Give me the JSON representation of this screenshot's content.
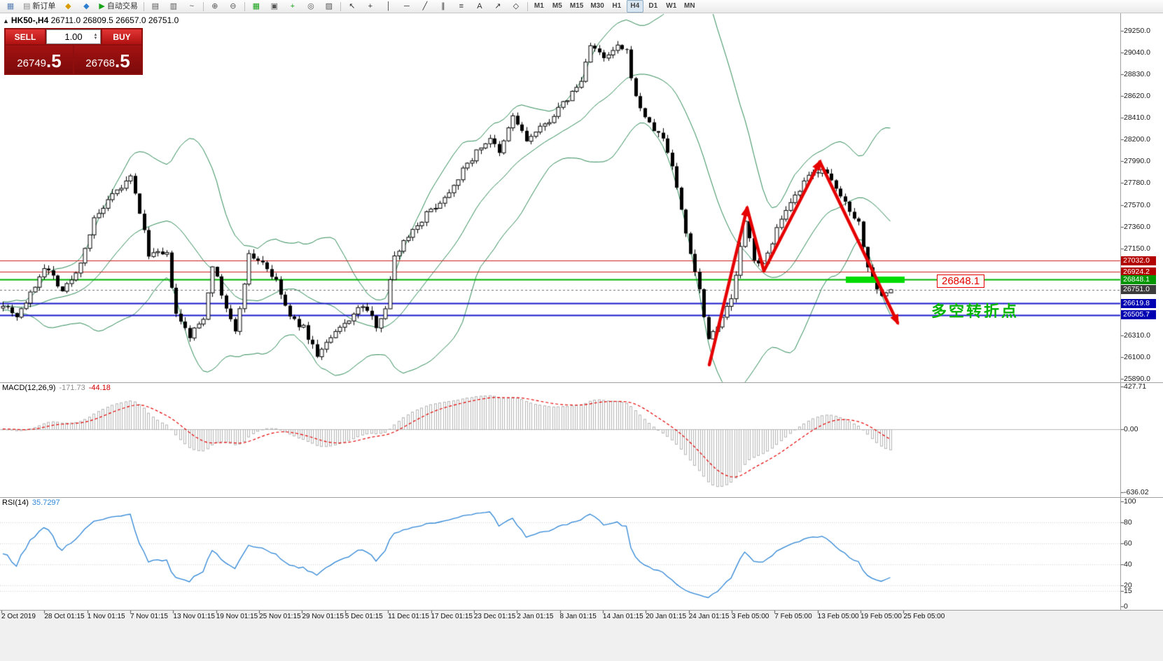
{
  "toolbar": {
    "groups": [
      {
        "items": [
          {
            "name": "new-chart-button",
            "icon": "new-chart-icon",
            "glyph": "▦",
            "color": "#5a7fb5"
          },
          {
            "name": "new-order-button",
            "icon": "new-order-icon",
            "glyph": "▤",
            "color": "#8a8a8a",
            "label": "新订单"
          },
          {
            "name": "mql5-community-button",
            "icon": "mql5-icon",
            "glyph": "◆",
            "color": "#d89c00"
          },
          {
            "name": "market-button",
            "icon": "market-icon",
            "glyph": "◆",
            "color": "#2f7fd0"
          },
          {
            "name": "autotrading-button",
            "icon": "autotrading-play-icon",
            "glyph": "▶",
            "color": "#17a317",
            "label": "自动交易"
          }
        ]
      },
      {
        "items": [
          {
            "name": "bar-chart-button",
            "icon": "bar-chart-icon",
            "glyph": "▤",
            "color": "#555555"
          },
          {
            "name": "candlestick-chart-button",
            "icon": "candlestick-chart-icon",
            "glyph": "▥",
            "color": "#555555"
          },
          {
            "name": "line-chart-button",
            "icon": "line-chart-icon",
            "glyph": "~",
            "color": "#555555"
          }
        ]
      },
      {
        "items": [
          {
            "name": "zoom-in-button",
            "icon": "zoom-in-icon",
            "glyph": "⊕",
            "color": "#555555"
          },
          {
            "name": "zoom-out-button",
            "icon": "zoom-out-icon",
            "glyph": "⊖",
            "color": "#555555"
          }
        ]
      },
      {
        "items": [
          {
            "name": "tile-windows-button",
            "icon": "tile-windows-icon",
            "glyph": "▦",
            "color": "#17a317"
          },
          {
            "name": "arrange-windows-button",
            "icon": "arrange-windows-icon",
            "glyph": "▣",
            "color": "#555555"
          },
          {
            "name": "indicators-button",
            "icon": "indicators-plus-icon",
            "glyph": "+",
            "color": "#17a317"
          },
          {
            "name": "periods-button",
            "icon": "clock-icon",
            "glyph": "◎",
            "color": "#555555"
          },
          {
            "name": "templates-button",
            "icon": "template-icon",
            "glyph": "▨",
            "color": "#555555"
          }
        ]
      },
      {
        "items": [
          {
            "name": "cursor-button",
            "icon": "cursor-icon",
            "glyph": "↖",
            "color": "#333333"
          },
          {
            "name": "crosshair-button",
            "icon": "crosshair-icon",
            "glyph": "+",
            "color": "#333333"
          },
          {
            "name": "vertical-line-button",
            "icon": "vertical-line-icon",
            "glyph": "│",
            "color": "#333333"
          },
          {
            "name": "horizontal-line-button",
            "icon": "horizontal-line-icon",
            "glyph": "─",
            "color": "#333333"
          },
          {
            "name": "trendline-button",
            "icon": "trendline-icon",
            "glyph": "╱",
            "color": "#333333"
          },
          {
            "name": "channel-button",
            "icon": "channel-icon",
            "glyph": "∥",
            "color": "#333333"
          },
          {
            "name": "fibonacci-button",
            "icon": "fibonacci-icon",
            "glyph": "≡",
            "color": "#333333"
          },
          {
            "name": "text-button",
            "icon": "text-icon",
            "glyph": "A",
            "color": "#333333"
          },
          {
            "name": "arrows-button",
            "icon": "arrow-marker-icon",
            "glyph": "↗",
            "color": "#333333"
          },
          {
            "name": "shapes-button",
            "icon": "shapes-icon",
            "glyph": "◇",
            "color": "#333333"
          }
        ]
      },
      {
        "items": [
          {
            "name": "timeframe-m1-button",
            "label": "M1",
            "tf": true
          },
          {
            "name": "timeframe-m5-button",
            "label": "M5",
            "tf": true
          },
          {
            "name": "timeframe-m15-button",
            "label": "M15",
            "tf": true
          },
          {
            "name": "timeframe-m30-button",
            "label": "M30",
            "tf": true
          },
          {
            "name": "timeframe-h1-button",
            "label": "H1",
            "tf": true
          },
          {
            "name": "timeframe-h4-button",
            "label": "H4",
            "tf": true,
            "active": true
          },
          {
            "name": "timeframe-d1-button",
            "label": "D1",
            "tf": true
          },
          {
            "name": "timeframe-w1-button",
            "label": "W1",
            "tf": true
          },
          {
            "name": "timeframe-mn-button",
            "label": "MN",
            "tf": true
          }
        ]
      }
    ]
  },
  "symbol_bar": {
    "arrow": "▲",
    "symbol": "HK50-,H4",
    "ohlc": "26711.0 26809.5 26657.0 26751.0"
  },
  "trade_panel": {
    "sell_label": "SELL",
    "buy_label": "BUY",
    "volume": "1.00",
    "spin_up": "▲",
    "spin_down": "▼",
    "sell_price": "26749",
    "sell_frac": ".5",
    "buy_price": "26768",
    "buy_frac": ".5"
  },
  "annotations": {
    "price_box": "26848.1",
    "turning_point": "多空转折点"
  },
  "macd_panel": {
    "title": "MACD(12,26,9)",
    "value_main": "-171.73",
    "value_signal": "-44.18",
    "axis": [
      "427.71",
      "0.00",
      "-636.02"
    ]
  },
  "rsi_panel": {
    "title": "RSI(14)",
    "value": "35.7297",
    "levels": [
      100,
      80,
      60,
      40,
      20,
      15,
      0
    ]
  },
  "time_axis": {
    "labels": [
      "2 Oct 2019",
      "28 Oct 01:15",
      "1 Nov 01:15",
      "7 Nov 01:15",
      "13 Nov 01:15",
      "19 Nov 01:15",
      "25 Nov 01:15",
      "29 Nov 01:15",
      "5 Dec 01:15",
      "11 Dec 01:15",
      "17 Dec 01:15",
      "23 Dec 01:15",
      "2 Jan 01:15",
      "8 Jan 01:15",
      "14 Jan 01:15",
      "20 Jan 01:15",
      "24 Jan 01:15",
      "3 Feb 05:00",
      "7 Feb 05:00",
      "13 Feb 05:00",
      "19 Feb 05:00",
      "25 Feb 05:00"
    ]
  },
  "chart_data": {
    "type": "candlestick",
    "symbol": "HK50-",
    "timeframe": "H4",
    "y_ticks": [
      29250,
      29040,
      28830,
      28620,
      28410,
      28200,
      27990,
      27780,
      27570,
      27360,
      27150,
      26310,
      26100,
      25890
    ],
    "level_lines": [
      {
        "price": 27032.0,
        "color": "#cc1a1a",
        "tag_bg": "#b30000",
        "width": 1,
        "dash": []
      },
      {
        "price": 26924.2,
        "color": "#cc1a1a",
        "tag_bg": "#b30000",
        "width": 1,
        "dash": []
      },
      {
        "price": 26848.1,
        "color": "#00b400",
        "tag_bg": "#009600",
        "width": 2,
        "dash": []
      },
      {
        "price": 26751.0,
        "color": "#707070",
        "tag_bg": "#3c3c3c",
        "width": 1,
        "dash": [
          3,
          3
        ]
      },
      {
        "price": 26619.8,
        "color": "#1a1acc",
        "tag_bg": "#0000b3",
        "width": 2,
        "dash": []
      },
      {
        "price": 26505.7,
        "color": "#1a1acc",
        "tag_bg": "#0000b3",
        "width": 2,
        "dash": []
      }
    ],
    "bollinger": {
      "period": 20,
      "deviation": 2,
      "color": "#2E8B57"
    },
    "macd": {
      "fast": 12,
      "slow": 26,
      "signal": 9,
      "histogram_color": "#b4b4b4",
      "signal_color": "#e60000"
    },
    "rsi": {
      "period": 14,
      "color": "#2f86d6"
    },
    "candles": {
      "count": 196,
      "seed": 7,
      "noise": 60,
      "wick": 45,
      "waypoints": [
        [
          0,
          26620
        ],
        [
          3,
          26500
        ],
        [
          6,
          26700
        ],
        [
          9,
          26980
        ],
        [
          11,
          26880
        ],
        [
          13,
          26740
        ],
        [
          16,
          26900
        ],
        [
          20,
          27420
        ],
        [
          24,
          27650
        ],
        [
          28,
          27830
        ],
        [
          30,
          27500
        ],
        [
          32,
          27100
        ],
        [
          36,
          27080
        ],
        [
          38,
          26500
        ],
        [
          41,
          26300
        ],
        [
          44,
          26480
        ],
        [
          46,
          27000
        ],
        [
          48,
          26700
        ],
        [
          51,
          26330
        ],
        [
          54,
          27080
        ],
        [
          57,
          27020
        ],
        [
          60,
          26820
        ],
        [
          63,
          26480
        ],
        [
          66,
          26380
        ],
        [
          69,
          26120
        ],
        [
          72,
          26280
        ],
        [
          76,
          26470
        ],
        [
          79,
          26600
        ],
        [
          82,
          26410
        ],
        [
          84,
          26580
        ],
        [
          86,
          27080
        ],
        [
          89,
          27280
        ],
        [
          93,
          27480
        ],
        [
          97,
          27640
        ],
        [
          100,
          27840
        ],
        [
          104,
          28080
        ],
        [
          107,
          28220
        ],
        [
          109,
          28050
        ],
        [
          112,
          28430
        ],
        [
          115,
          28190
        ],
        [
          119,
          28340
        ],
        [
          123,
          28540
        ],
        [
          127,
          28760
        ],
        [
          129,
          29130
        ],
        [
          132,
          28970
        ],
        [
          135,
          29090
        ],
        [
          137,
          29040
        ],
        [
          139,
          28600
        ],
        [
          142,
          28340
        ],
        [
          145,
          28210
        ],
        [
          147,
          27950
        ],
        [
          150,
          27300
        ],
        [
          153,
          26750
        ],
        [
          155,
          26280
        ],
        [
          157,
          26420
        ],
        [
          160,
          26650
        ],
        [
          163,
          27400
        ],
        [
          165,
          27060
        ],
        [
          167,
          26980
        ],
        [
          170,
          27340
        ],
        [
          174,
          27640
        ],
        [
          177,
          27840
        ],
        [
          180,
          27930
        ],
        [
          182,
          27780
        ],
        [
          185,
          27590
        ],
        [
          188,
          27400
        ],
        [
          190,
          26960
        ],
        [
          193,
          26680
        ],
        [
          195,
          26751
        ]
      ]
    },
    "trend_arrows": {
      "color": "#e60000",
      "width": 4.5,
      "segments": [
        {
          "from": [
            1013,
            521
          ],
          "to": [
            1067,
            297
          ],
          "head": true
        },
        {
          "from": [
            1067,
            297
          ],
          "to": [
            1091,
            387
          ],
          "head": false
        },
        {
          "from": [
            1091,
            387
          ],
          "to": [
            1171,
            231
          ],
          "head": true
        },
        {
          "from": [
            1171,
            231
          ],
          "to": [
            1282,
            461
          ],
          "head": true
        }
      ]
    },
    "highlight": {
      "x": 1208,
      "y": 395,
      "w": 84,
      "h": 9,
      "color": "#00dc00"
    }
  }
}
